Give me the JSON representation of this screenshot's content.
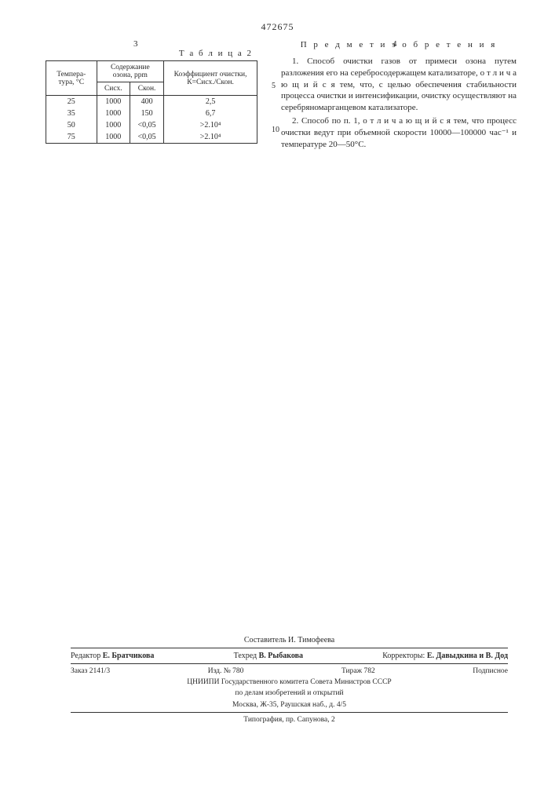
{
  "doc_number": "472675",
  "col_left_num": "3",
  "col_right_num": "4",
  "table": {
    "title": "Т а б л и ц а 2",
    "header": {
      "temp": "Темпера-\nтура, °С",
      "ozone_group": "Содержание озона, ppm",
      "c_in": "Cисх.",
      "c_out": "Cкон.",
      "coef": "Коэффициент очистки, К=Cисх./Cкон."
    },
    "rows": [
      {
        "temp": "25",
        "c_in": "1000",
        "c_out": "400",
        "coef": "2,5"
      },
      {
        "temp": "35",
        "c_in": "1000",
        "c_out": "150",
        "coef": "6,7"
      },
      {
        "temp": "50",
        "c_in": "1000",
        "c_out": "<0,05",
        "coef": ">2.10⁴"
      },
      {
        "temp": "75",
        "c_in": "1000",
        "c_out": "<0,05",
        "coef": ">2.10⁴"
      }
    ]
  },
  "claims": {
    "title": "П р е д м е т  и з о б р е т е н и я",
    "p1": "1. Способ очистки газов от примеси озона путем разложения его на серебросодержащем катализаторе, о т л и ч а ю щ и й с я тем, что, с целью обеспечения стабильности процесса очистки и интенсификации, очистку осуществляют на серебряномарганцевом катализаторе.",
    "p2": "2. Способ по п. 1, о т л и ч а ю щ и й с я тем, что процесс очистки ведут при объемной скорости 10000—100000 час⁻¹ и температуре 20—50°С."
  },
  "line_numbers": {
    "l5": "5",
    "l10": "10"
  },
  "footer": {
    "compiler": "Составитель И. Тимофеева",
    "editor_label": "Редактор",
    "editor": "Е. Братчикова",
    "tech_label": "Техред",
    "tech": "В. Рыбакова",
    "corr_label": "Корректоры:",
    "corr": "Е. Давыдкина и В. Дод",
    "order": "Заказ 2141/3",
    "izd": "Изд. № 780",
    "tirazh": "Тираж 782",
    "podpisnoe": "Подписное",
    "org1": "ЦНИИПИ Государственного комитета Совета Министров СССР",
    "org2": "по делам изобретений и открытий",
    "org3": "Москва, Ж-35, Раушская наб., д. 4/5",
    "typo": "Типография, пр. Сапунова, 2"
  }
}
